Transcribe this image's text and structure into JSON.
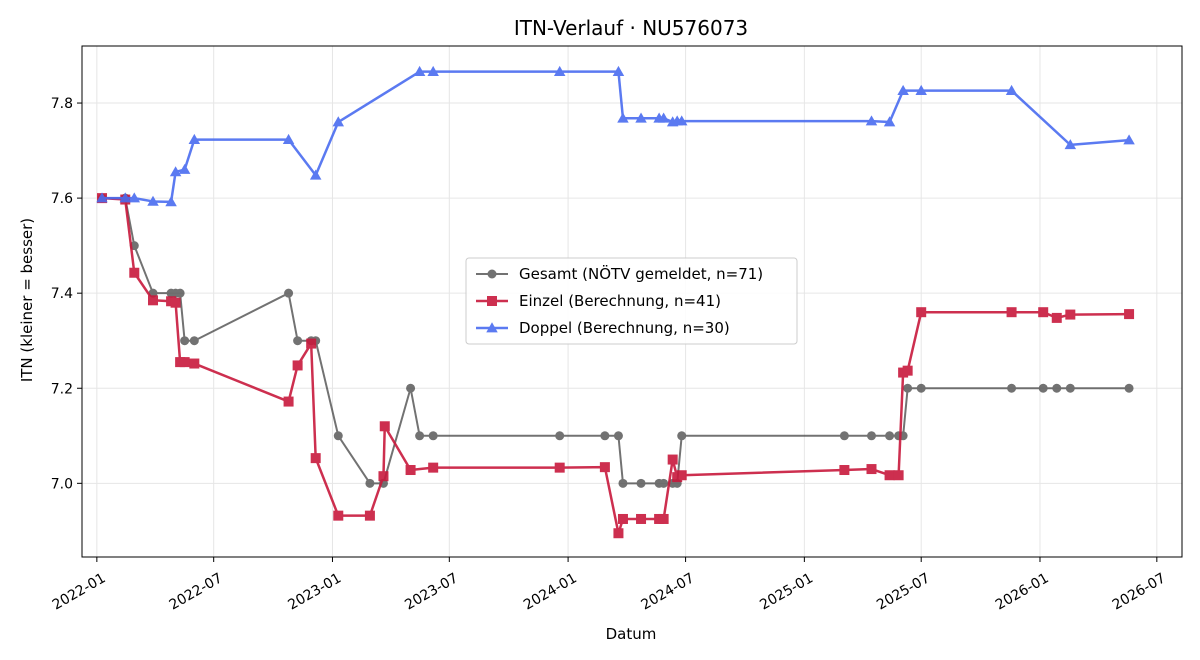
{
  "chart_data": {
    "type": "line",
    "title": "ITN-Verlauf · NU576073",
    "xlabel": "Datum",
    "ylabel": "ITN  (kleiner = besser)",
    "xlim": [
      "2021-12-09",
      "2026-08-09"
    ],
    "ylim": [
      6.845,
      7.92
    ],
    "x_ticks": [
      "2022-01",
      "2022-07",
      "2023-01",
      "2023-07",
      "2024-01",
      "2024-07",
      "2025-01",
      "2025-07",
      "2026-01",
      "2026-07"
    ],
    "y_ticks": [
      "7.0",
      "7.2",
      "7.4",
      "7.6",
      "7.8"
    ],
    "grid": true,
    "legend_position": "center",
    "series": [
      {
        "name": "Gesamt (NÖTV gemeldet, n=71)",
        "color": "#444444",
        "marker": "circle",
        "points": [
          [
            "2022-01-09",
            7.6
          ],
          [
            "2022-02-14",
            7.6
          ],
          [
            "2022-02-28",
            7.5
          ],
          [
            "2022-03-29",
            7.4
          ],
          [
            "2022-04-26",
            7.4
          ],
          [
            "2022-05-03",
            7.4
          ],
          [
            "2022-05-10",
            7.4
          ],
          [
            "2022-05-17",
            7.3
          ],
          [
            "2022-06-01",
            7.3
          ],
          [
            "2022-10-25",
            7.4
          ],
          [
            "2022-11-08",
            7.3
          ],
          [
            "2022-11-29",
            7.3
          ],
          [
            "2022-12-06",
            7.3
          ],
          [
            "2023-01-10",
            7.1
          ],
          [
            "2023-02-28",
            7.0
          ],
          [
            "2023-03-21",
            7.0
          ],
          [
            "2023-05-02",
            7.2
          ],
          [
            "2023-05-16",
            7.1
          ],
          [
            "2023-06-06",
            7.1
          ],
          [
            "2023-12-19",
            7.1
          ],
          [
            "2024-02-27",
            7.1
          ],
          [
            "2024-03-19",
            7.1
          ],
          [
            "2024-03-26",
            7.0
          ],
          [
            "2024-04-23",
            7.0
          ],
          [
            "2024-05-21",
            7.0
          ],
          [
            "2024-05-28",
            7.0
          ],
          [
            "2024-06-11",
            7.0
          ],
          [
            "2024-06-18",
            7.0
          ],
          [
            "2024-06-25",
            7.1
          ],
          [
            "2025-03-04",
            7.1
          ],
          [
            "2025-04-15",
            7.1
          ],
          [
            "2025-05-13",
            7.1
          ],
          [
            "2025-05-27",
            7.1
          ],
          [
            "2025-06-03",
            7.1
          ],
          [
            "2025-06-10",
            7.2
          ],
          [
            "2025-07-01",
            7.2
          ],
          [
            "2025-11-18",
            7.2
          ],
          [
            "2026-01-06",
            7.2
          ],
          [
            "2026-01-27",
            7.2
          ],
          [
            "2026-02-17",
            7.2
          ],
          [
            "2026-05-19",
            7.2
          ]
        ]
      },
      {
        "name": "Einzel (Berechnung, n=41)",
        "color": "#c8193c",
        "marker": "square",
        "points": [
          [
            "2022-01-09",
            7.6
          ],
          [
            "2022-02-14",
            7.597
          ],
          [
            "2022-02-28",
            7.443
          ],
          [
            "2022-03-29",
            7.385
          ],
          [
            "2022-04-26",
            7.383
          ],
          [
            "2022-05-03",
            7.38
          ],
          [
            "2022-05-10",
            7.255
          ],
          [
            "2022-05-17",
            7.255
          ],
          [
            "2022-06-01",
            7.252
          ],
          [
            "2022-10-25",
            7.172
          ],
          [
            "2022-11-08",
            7.248
          ],
          [
            "2022-11-29",
            7.294
          ],
          [
            "2022-12-06",
            7.053
          ],
          [
            "2023-01-10",
            6.932
          ],
          [
            "2023-02-28",
            6.932
          ],
          [
            "2023-03-21",
            7.015
          ],
          [
            "2023-03-23",
            7.12
          ],
          [
            "2023-05-02",
            7.028
          ],
          [
            "2023-06-06",
            7.033
          ],
          [
            "2023-12-19",
            7.033
          ],
          [
            "2024-02-27",
            7.034
          ],
          [
            "2024-03-19",
            6.895
          ],
          [
            "2024-03-26",
            6.925
          ],
          [
            "2024-04-23",
            6.925
          ],
          [
            "2024-05-21",
            6.925
          ],
          [
            "2024-05-28",
            6.925
          ],
          [
            "2024-06-11",
            7.05
          ],
          [
            "2024-06-18",
            7.013
          ],
          [
            "2024-06-25",
            7.017
          ],
          [
            "2025-03-04",
            7.028
          ],
          [
            "2025-04-15",
            7.03
          ],
          [
            "2025-05-13",
            7.017
          ],
          [
            "2025-05-27",
            7.017
          ],
          [
            "2025-06-03",
            7.233
          ],
          [
            "2025-06-10",
            7.237
          ],
          [
            "2025-07-01",
            7.36
          ],
          [
            "2025-11-18",
            7.36
          ],
          [
            "2026-01-06",
            7.36
          ],
          [
            "2026-01-27",
            7.348
          ],
          [
            "2026-02-17",
            7.355
          ],
          [
            "2026-05-19",
            7.356
          ]
        ]
      },
      {
        "name": "Doppel (Berechnung, n=30)",
        "color": "#4a6cf0",
        "marker": "triangle",
        "points": [
          [
            "2022-01-09",
            7.6
          ],
          [
            "2022-02-14",
            7.6
          ],
          [
            "2022-02-28",
            7.6
          ],
          [
            "2022-03-29",
            7.593
          ],
          [
            "2022-04-26",
            7.592
          ],
          [
            "2022-05-03",
            7.655
          ],
          [
            "2022-05-17",
            7.66
          ],
          [
            "2022-06-01",
            7.723
          ],
          [
            "2022-10-25",
            7.723
          ],
          [
            "2022-12-06",
            7.648
          ],
          [
            "2023-01-10",
            7.76
          ],
          [
            "2023-05-16",
            7.866
          ],
          [
            "2023-06-06",
            7.866
          ],
          [
            "2023-12-19",
            7.866
          ],
          [
            "2024-03-19",
            7.866
          ],
          [
            "2024-03-26",
            7.768
          ],
          [
            "2024-04-23",
            7.768
          ],
          [
            "2024-05-21",
            7.768
          ],
          [
            "2024-05-28",
            7.768
          ],
          [
            "2024-06-11",
            7.76
          ],
          [
            "2024-06-18",
            7.762
          ],
          [
            "2024-06-25",
            7.762
          ],
          [
            "2025-04-15",
            7.762
          ],
          [
            "2025-05-13",
            7.76
          ],
          [
            "2025-06-03",
            7.826
          ],
          [
            "2025-07-01",
            7.826
          ],
          [
            "2025-11-18",
            7.826
          ],
          [
            "2026-02-17",
            7.712
          ],
          [
            "2026-05-19",
            7.722
          ]
        ]
      }
    ]
  }
}
